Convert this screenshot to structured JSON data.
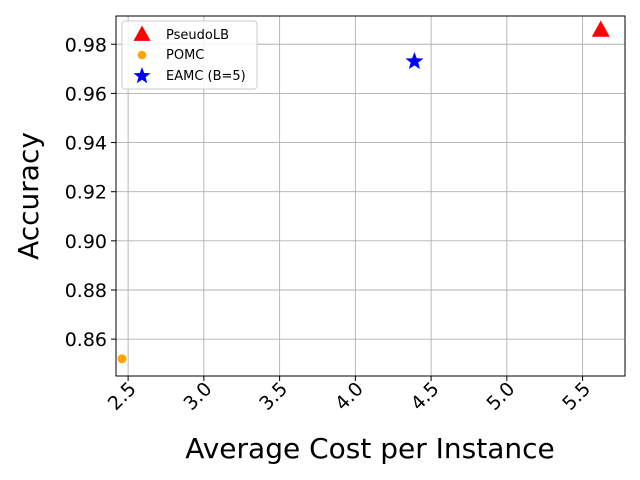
{
  "chart_data": {
    "type": "scatter",
    "title": "",
    "xlabel": "Average Cost per Instance",
    "ylabel": "Accuracy",
    "xlim": [
      2.42,
      5.78
    ],
    "ylim": [
      0.845,
      0.9915
    ],
    "xticks": [
      "2.5",
      "3.0",
      "3.5",
      "4.0",
      "4.5",
      "5.0",
      "5.5"
    ],
    "yticks": [
      "0.86",
      "0.88",
      "0.90",
      "0.92",
      "0.94",
      "0.96",
      "0.98"
    ],
    "grid": true,
    "legend_position": "top-left",
    "series": [
      {
        "name": "PseudoLB",
        "marker": "triangle",
        "color": "#ff0000",
        "points": [
          {
            "x": 5.62,
            "y": 0.986
          }
        ]
      },
      {
        "name": "POMC",
        "marker": "circle",
        "color": "#ffa500",
        "points": [
          {
            "x": 2.46,
            "y": 0.852
          }
        ]
      },
      {
        "name": "EAMC (B=5)",
        "marker": "star",
        "color": "#0000ff",
        "points": [
          {
            "x": 4.39,
            "y": 0.973
          }
        ]
      }
    ]
  }
}
